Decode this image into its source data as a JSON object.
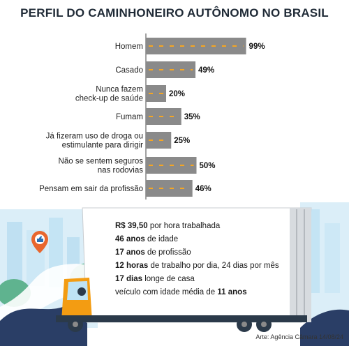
{
  "title": "PERFIL DO CAMINHONEIRO AUTÔNOMO NO BRASIL",
  "chart_data": {
    "type": "bar",
    "orientation": "horizontal",
    "categories": [
      [
        "Homem"
      ],
      [
        "Casado"
      ],
      [
        "Nunca fazem",
        "check-up de saúde"
      ],
      [
        "Fumam"
      ],
      [
        "Já fizeram uso de droga ou",
        "estimulante para dirigir"
      ],
      [
        "Não se sentem seguros",
        "nas rodovias"
      ],
      [
        "Pensam em sair da profissão"
      ]
    ],
    "values": [
      99,
      49,
      20,
      35,
      25,
      50,
      46
    ],
    "value_labels": [
      "99%",
      "49%",
      "20%",
      "35%",
      "25%",
      "50%",
      "46%"
    ],
    "unit": "%",
    "xlim": [
      0,
      100
    ],
    "bar_color": "#8a8a8a",
    "lane_mark_color": "#f5a623"
  },
  "facts": [
    {
      "bold": "R$ 39,50",
      "rest": " por hora trabalhada"
    },
    {
      "bold": "46 anos",
      "rest": " de idade"
    },
    {
      "bold": "17 anos",
      "rest": " de profissão"
    },
    {
      "bold": "12 horas",
      "rest": " de trabalho por dia, 24 dias por mês"
    },
    {
      "bold": "17 dias",
      "rest": " longe de casa"
    },
    {
      "pre": "veículo com idade média de ",
      "bold": "11 anos",
      "rest": ""
    }
  ],
  "credit": "Arte: Agência Câmara 14/08/24",
  "colors": {
    "sky": "#dbeef8",
    "truck_orange": "#f39c12",
    "truck_dark": "#2b3a4a",
    "map_pin": "#e8662e",
    "hills": "#2a3e66"
  }
}
